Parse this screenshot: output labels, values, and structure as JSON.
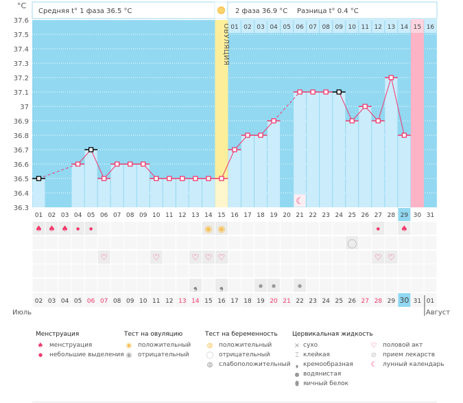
{
  "header": {
    "unit": "°C",
    "phase1": "Средняя t° 1 фаза 36.5 °C",
    "phase2": "2 фаза 36.9 °C",
    "diff": "Разница t° 0.4 °C",
    "ovulation_label": "ОВУЛЯЦИЯ"
  },
  "colors": {
    "bg_dark": "#92d8f1",
    "bar": "#cbecfb",
    "ovulation": "#fbef9b",
    "period": "#fdb3c6",
    "line": "#f0386b",
    "weekend": "#f0386b"
  },
  "chart_data": {
    "type": "line",
    "ylim": [
      36.3,
      37.6
    ],
    "yticks": [
      "37.6",
      "37.5",
      "37.4",
      "37.3",
      "37.2",
      "37.1",
      "37",
      "36.9",
      "36.8",
      "36.7",
      "36.6",
      "36.5",
      "36.4",
      "36.3"
    ],
    "cycle_days": [
      "01",
      "02",
      "03",
      "04",
      "05",
      "06",
      "07",
      "08",
      "09",
      "10",
      "11",
      "12",
      "13",
      "14",
      "15",
      "16",
      "17",
      "18",
      "19",
      "20",
      "21",
      "22",
      "23",
      "24",
      "25",
      "26",
      "27",
      "28",
      "29",
      "30",
      "31"
    ],
    "temps": [
      36.5,
      null,
      null,
      36.6,
      36.7,
      36.5,
      36.6,
      36.6,
      36.6,
      36.5,
      36.5,
      36.5,
      36.5,
      36.5,
      36.5,
      36.7,
      36.8,
      36.8,
      36.9,
      null,
      37.1,
      37.1,
      37.1,
      37.1,
      36.9,
      37.0,
      36.9,
      37.2,
      36.8,
      null,
      null
    ],
    "excluded_days": [
      1,
      5,
      24
    ],
    "ovulation_day": 15,
    "period_day": 30,
    "today_cycle_day": 29,
    "phase2_days": [
      "01",
      "02",
      "03",
      "04",
      "05",
      "06",
      "07",
      "08",
      "09",
      "10",
      "11",
      "12",
      "13",
      "14",
      "15",
      "16"
    ],
    "dates": [
      "02",
      "03",
      "04",
      "05",
      "06",
      "07",
      "08",
      "09",
      "10",
      "11",
      "12",
      "13",
      "14",
      "15",
      "16",
      "17",
      "18",
      "19",
      "20",
      "21",
      "22",
      "23",
      "24",
      "25",
      "26",
      "27",
      "28",
      "29",
      "30",
      "31",
      "01"
    ],
    "weekend_dates_idx": [
      4,
      5,
      11,
      12,
      18,
      19,
      25,
      26
    ],
    "today_date_idx": 28,
    "month1": "Июль",
    "month2": "Август",
    "moon_day": 21
  },
  "marks": {
    "row1": {
      "1": "menses",
      "2": "menses",
      "3": "menses",
      "4": "spotting",
      "5": "spotting",
      "14": "ovu-pos",
      "15": "ovu-pos",
      "27": "spotting",
      "29": "menses"
    },
    "row2": {
      "25": "preg-neg"
    },
    "row3": {
      "6": "heart",
      "10": "heart",
      "13": "heart",
      "14": "heart",
      "15": "heart",
      "27": "heart",
      "28": "heart"
    },
    "row4": {},
    "row5": {
      "13": "creamy",
      "15": "creamy",
      "18": "watery",
      "19": "watery",
      "21": "watery"
    }
  },
  "legend": {
    "menstruation": {
      "title": "Менструация",
      "items": [
        "менструация",
        "небольшие выделения"
      ]
    },
    "ovulation_test": {
      "title": "Тест на овуляцию",
      "items": [
        "положительный",
        "отрицательный"
      ]
    },
    "pregnancy_test": {
      "title": "Тест на беременность",
      "items": [
        "положительный",
        "отрицательный",
        "слабоположительный"
      ]
    },
    "cervical": {
      "title": "Цервикальная жидкость",
      "items": [
        "сухо",
        "клейкая",
        "кремообразная",
        "водянистая",
        "яичный белок"
      ]
    },
    "other": {
      "items": [
        "половой акт",
        "прием лекарств",
        "лунный календарь"
      ]
    }
  }
}
